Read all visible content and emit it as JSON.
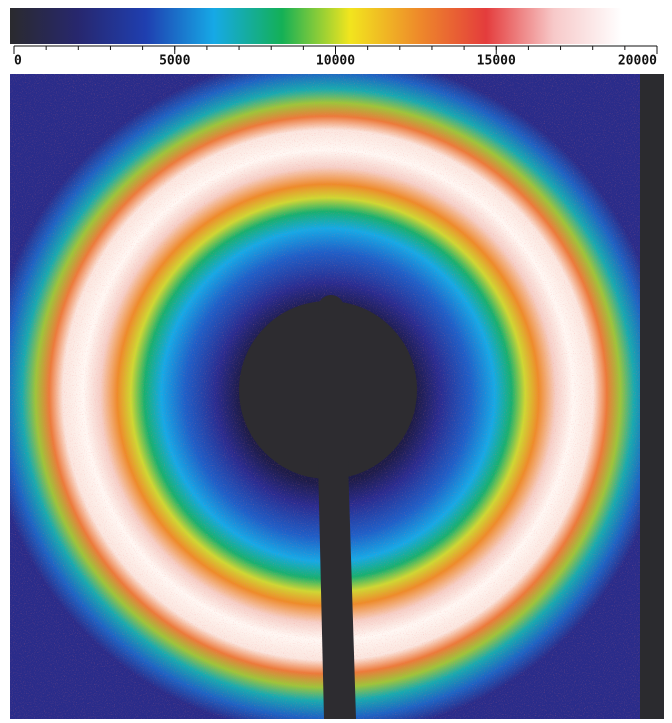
{
  "colorbar": {
    "lim": [
      0,
      20000
    ],
    "ticks": [
      0,
      5000,
      10000,
      15000,
      20000
    ],
    "colors": [
      "#2a2a2e",
      "#27276e",
      "#1f3fb0",
      "#16a9e6",
      "#14b056",
      "#f2e51e",
      "#ee8b2a",
      "#e43c3c",
      "#f7c9c9",
      "#ffffff"
    ]
  }
}
